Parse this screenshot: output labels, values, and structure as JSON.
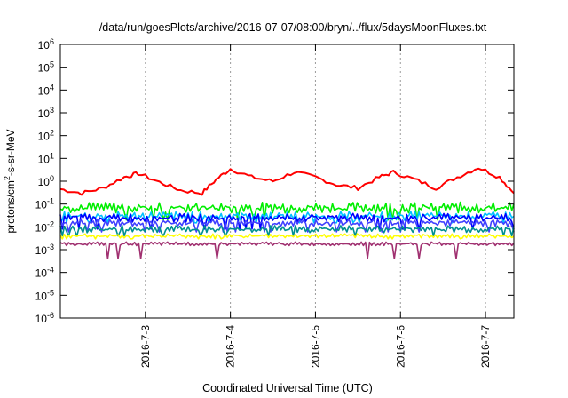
{
  "chart_data": {
    "type": "line",
    "title": "/data/run/goesPlots/archive/2016-07-07/08:00/bryn/../flux/5daysMoonFluxes.txt",
    "xlabel": "Coordinated Universal Time (UTC)",
    "ylabel_parts": {
      "base": "protons/cm",
      "sup": "2",
      "rest": "-s-sr-MeV"
    },
    "y_scale": "log",
    "ylim": [
      1e-06,
      1000000.0
    ],
    "y_ticks": [
      {
        "value": 1e-06,
        "base": "10",
        "exp": "-6"
      },
      {
        "value": 1e-05,
        "base": "10",
        "exp": "-5"
      },
      {
        "value": 0.0001,
        "base": "10",
        "exp": "-4"
      },
      {
        "value": 0.001,
        "base": "10",
        "exp": "-3"
      },
      {
        "value": 0.01,
        "base": "10",
        "exp": "-2"
      },
      {
        "value": 0.1,
        "base": "10",
        "exp": "-1"
      },
      {
        "value": 1,
        "base": "10",
        "exp": "0"
      },
      {
        "value": 10,
        "base": "10",
        "exp": "1"
      },
      {
        "value": 100,
        "base": "10",
        "exp": "2"
      },
      {
        "value": 1000,
        "base": "10",
        "exp": "3"
      },
      {
        "value": 10000,
        "base": "10",
        "exp": "4"
      },
      {
        "value": 100000,
        "base": "10",
        "exp": "5"
      },
      {
        "value": 1000000,
        "base": "10",
        "exp": "6"
      }
    ],
    "xlim": [
      "2016-07-02 00:00",
      "2016-07-07 08:00"
    ],
    "x_ticks": [
      "2016-7-3",
      "2016-7-4",
      "2016-7-5",
      "2016-7-6",
      "2016-7-7"
    ],
    "grid": true,
    "legend": "none",
    "series": [
      {
        "color": "#ff0000",
        "points": [
          [
            "2016-07-02 00:00",
            0.45
          ],
          [
            "2016-07-02 06:00",
            0.3
          ],
          [
            "2016-07-02 12:00",
            0.5
          ],
          [
            "2016-07-02 18:00",
            1.5
          ],
          [
            "2016-07-02 22:00",
            2.2
          ],
          [
            "2016-07-03 04:00",
            0.9
          ],
          [
            "2016-07-03 10:00",
            0.4
          ],
          [
            "2016-07-03 16:00",
            0.3
          ],
          [
            "2016-07-03 20:00",
            1.2
          ],
          [
            "2016-07-04 00:00",
            3.5
          ],
          [
            "2016-07-04 06:00",
            1.5
          ],
          [
            "2016-07-04 12:00",
            1.0
          ],
          [
            "2016-07-04 18:00",
            2.5
          ],
          [
            "2016-07-05 00:00",
            1.5
          ],
          [
            "2016-07-05 06:00",
            0.7
          ],
          [
            "2016-07-05 12:00",
            0.5
          ],
          [
            "2016-07-05 18:00",
            1.5
          ],
          [
            "2016-07-05 22:00",
            2.5
          ],
          [
            "2016-07-06 04:00",
            1.2
          ],
          [
            "2016-07-06 10:00",
            0.5
          ],
          [
            "2016-07-06 16:00",
            1.5
          ],
          [
            "2016-07-06 22:00",
            4.0
          ],
          [
            "2016-07-07 04:00",
            1.5
          ],
          [
            "2016-07-07 08:00",
            0.3
          ]
        ]
      },
      {
        "color": "#00ee00",
        "base": 0.07,
        "amp": 0.15,
        "dips": 0.02
      },
      {
        "color": "#00c0ff",
        "base": 0.03,
        "amp": 0.12,
        "dips": 0.015
      },
      {
        "color": "#0000ff",
        "base": 0.025,
        "amp": 0.12,
        "dips": 0.008
      },
      {
        "color": "#4040ff",
        "base": 0.015,
        "amp": 0.1,
        "dips": 0.006
      },
      {
        "color": "#009090",
        "base": 0.008,
        "amp": 0.1,
        "dips": 0.004
      },
      {
        "color": "#ffff00",
        "base": 0.004,
        "amp": 0.06,
        "dips": 0.003
      },
      {
        "color": "#a03070",
        "base": 0.0018,
        "amp": 0.05,
        "dips": 0.0004
      }
    ]
  }
}
